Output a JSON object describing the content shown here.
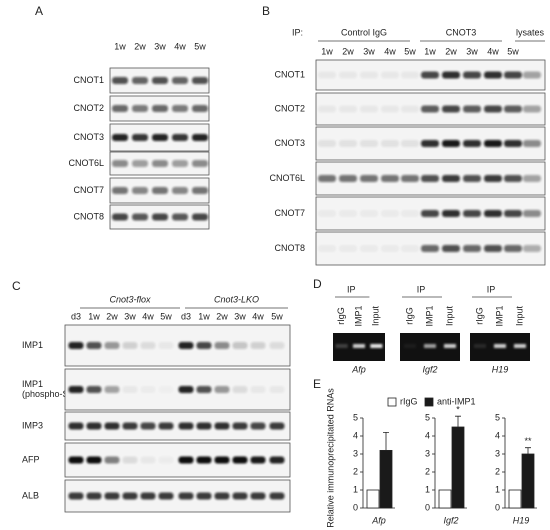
{
  "panel_a": {
    "label": "A",
    "lanes": [
      "1w",
      "2w",
      "3w",
      "4w",
      "5w"
    ],
    "rows": [
      "CNOT1",
      "CNOT2",
      "CNOT3",
      "CNOT6L",
      "CNOT7",
      "CNOT8"
    ]
  },
  "panel_b": {
    "label": "B",
    "ip_label": "IP:",
    "groups": [
      "Control IgG",
      "CNOT3",
      "lysates"
    ],
    "lanes": [
      "1w",
      "2w",
      "3w",
      "4w",
      "5w"
    ],
    "rows": [
      "CNOT1",
      "CNOT2",
      "CNOT3",
      "CNOT6L",
      "CNOT7",
      "CNOT8"
    ]
  },
  "panel_c": {
    "label": "C",
    "groups": [
      "Cnot3-flox",
      "Cnot3-LKO"
    ],
    "lanes": [
      "d3",
      "1w",
      "2w",
      "3w",
      "4w",
      "5w"
    ],
    "rows": [
      [
        "IMP1"
      ],
      [
        "IMP1",
        "(phospho-Ser)"
      ],
      [
        "IMP3"
      ],
      [
        "AFP"
      ],
      [
        "ALB"
      ]
    ]
  },
  "panel_d": {
    "label": "D",
    "gels": [
      {
        "ip": "IP",
        "lanes": [
          "rIgG",
          "IMP1",
          "Input"
        ],
        "gene": "Afp"
      },
      {
        "ip": "IP",
        "lanes": [
          "rIgG",
          "IMP1",
          "Input"
        ],
        "gene": "Igf2"
      },
      {
        "ip": "IP",
        "lanes": [
          "rIgG",
          "IMP1",
          "Input"
        ],
        "gene": "H19"
      }
    ]
  },
  "panel_e": {
    "label": "E",
    "ylabel": "Relative immunoprecipitated RNAs"
  },
  "chart_data": [
    {
      "type": "bar",
      "categories": [
        "Afp"
      ],
      "ylim": [
        0,
        5
      ],
      "yticks": [
        0,
        1,
        2,
        3,
        4,
        5
      ],
      "series": [
        {
          "name": "rIgG",
          "color": "#ffffff",
          "values": [
            1
          ]
        },
        {
          "name": "anti-IMP1",
          "color": "#1a1a1a",
          "values": [
            3.2
          ],
          "errors": [
            1.0
          ]
        }
      ]
    },
    {
      "type": "bar",
      "categories": [
        "Igf2"
      ],
      "ylim": [
        0,
        5
      ],
      "yticks": [
        0,
        1,
        2,
        3,
        4,
        5
      ],
      "annotation": "*",
      "series": [
        {
          "name": "rIgG",
          "color": "#ffffff",
          "values": [
            1
          ]
        },
        {
          "name": "anti-IMP1",
          "color": "#1a1a1a",
          "values": [
            4.5
          ],
          "errors": [
            0.6
          ]
        }
      ]
    },
    {
      "type": "bar",
      "categories": [
        "H19"
      ],
      "ylim": [
        0,
        5
      ],
      "yticks": [
        0,
        1,
        2,
        3,
        4,
        5
      ],
      "annotation": "**",
      "series": [
        {
          "name": "rIgG",
          "color": "#ffffff",
          "values": [
            1
          ]
        },
        {
          "name": "anti-IMP1",
          "color": "#1a1a1a",
          "values": [
            3.0
          ],
          "errors": [
            0.35
          ]
        }
      ]
    }
  ]
}
